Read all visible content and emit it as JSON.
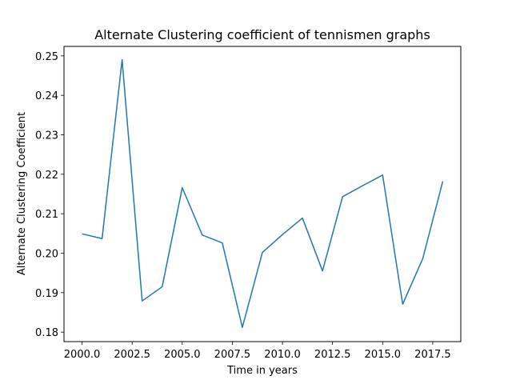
{
  "chart_data": {
    "type": "line",
    "title": "Alternate Clustering coefficient of tennismen graphs",
    "xlabel": "Time in years",
    "ylabel": "Alternate Clustering Coefficient",
    "xlim": [
      1999.1,
      2018.9
    ],
    "ylim": [
      0.1776,
      0.2524
    ],
    "xticks": [
      2000.0,
      2002.5,
      2005.0,
      2007.5,
      2010.0,
      2012.5,
      2015.0,
      2017.5
    ],
    "xtick_labels": [
      "2000.0",
      "2002.5",
      "2005.0",
      "2007.5",
      "2010.0",
      "2012.5",
      "2015.0",
      "2017.5"
    ],
    "yticks": [
      0.18,
      0.19,
      0.2,
      0.21,
      0.22,
      0.23,
      0.24,
      0.25
    ],
    "ytick_labels": [
      "0.18",
      "0.19",
      "0.20",
      "0.21",
      "0.22",
      "0.23",
      "0.24",
      "0.25"
    ],
    "grid": false,
    "series": [
      {
        "color": "#1f77b4",
        "x": [
          2000,
          2001,
          2002,
          2003,
          2004,
          2005,
          2006,
          2007,
          2008,
          2009,
          2010,
          2011,
          2012,
          2013,
          2014,
          2015,
          2016,
          2017,
          2018
        ],
        "y": [
          0.2049,
          0.2037,
          0.249,
          0.1879,
          0.1915,
          0.2166,
          0.2046,
          0.2026,
          0.1812,
          0.2002,
          0.2047,
          0.2089,
          0.1955,
          0.2143,
          0.2171,
          0.2198,
          0.1871,
          0.1986,
          0.2182
        ]
      }
    ]
  }
}
